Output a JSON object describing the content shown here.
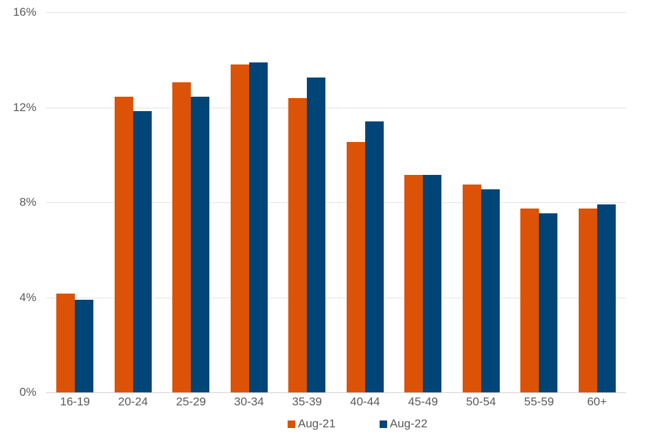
{
  "chart_data": {
    "type": "bar",
    "title": "",
    "categories": [
      "16-19",
      "20-24",
      "25-29",
      "30-34",
      "35-39",
      "40-44",
      "45-49",
      "50-54",
      "55-59",
      "60+"
    ],
    "series": [
      {
        "name": "Aug-21",
        "color": "#DC5206",
        "values": [
          4.15,
          12.45,
          13.05,
          13.8,
          12.4,
          10.55,
          9.15,
          8.75,
          7.75,
          7.75
        ]
      },
      {
        "name": "Aug-22",
        "color": "#004578",
        "values": [
          3.9,
          11.85,
          12.45,
          13.9,
          13.25,
          11.4,
          9.15,
          8.55,
          7.55,
          7.9
        ]
      }
    ],
    "xlabel": "",
    "ylabel": "",
    "ylim": [
      0,
      16
    ],
    "ytick_values": [
      0,
      4,
      8,
      12,
      16
    ],
    "ytick_labels": [
      "0%",
      "4%",
      "8%",
      "12%",
      "16%"
    ],
    "grid": true,
    "legend_position": "bottom"
  },
  "colors": {
    "background": "#FFFFFF",
    "gridline": "#E2E2E2",
    "axis_line": "#D2D2D2",
    "label_text": "#595959",
    "series_aug21": "#DC5206",
    "series_aug22": "#004578"
  }
}
